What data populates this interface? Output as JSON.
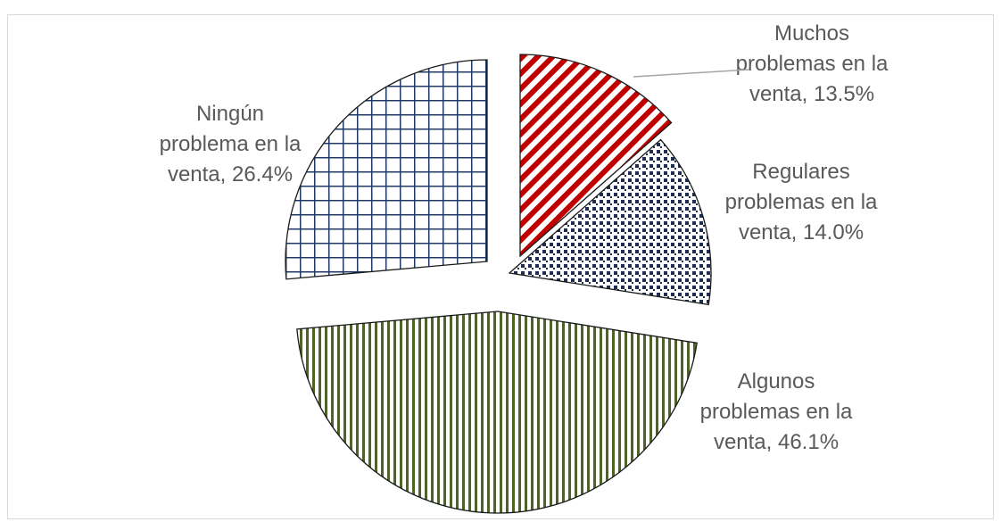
{
  "chart_data": {
    "type": "pie",
    "title": "",
    "exploded": true,
    "slices": [
      {
        "label": "Muchos problemas en la venta",
        "value": 13.5,
        "label_lines": [
          "Muchos",
          "problemas en la",
          "venta, 13.5%"
        ],
        "color": "#c00000",
        "pattern": "wide-downward-diagonal"
      },
      {
        "label": "Regulares problemas en la venta",
        "value": 14.0,
        "label_lines": [
          "Regulares",
          "problemas en la",
          "venta, 14.0%"
        ],
        "color": "#1f2d4f",
        "pattern": "dotted-grid"
      },
      {
        "label": "Algunos problemas en la venta",
        "value": 46.1,
        "label_lines": [
          "Algunos",
          "problemas en la",
          "venta, 46.1%"
        ],
        "color": "#4f6228",
        "pattern": "vertical-lines"
      },
      {
        "label": "Ningún problema en la venta",
        "value": 26.4,
        "label_lines": [
          "Ningún",
          "problema en la",
          "venta, 26.4%"
        ],
        "color": "#1f3864",
        "pattern": "grid"
      }
    ]
  }
}
